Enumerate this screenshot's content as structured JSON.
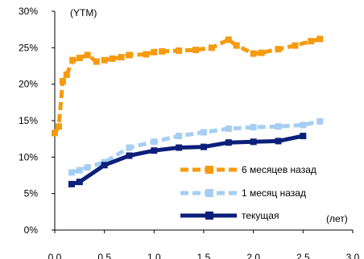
{
  "chart_data": {
    "type": "line",
    "ylabel": "(YTM)",
    "xlabel": "(лет)",
    "xlim": [
      0,
      3
    ],
    "ylim": [
      0,
      30
    ],
    "x_ticks": [
      "0.0",
      "0.5",
      "1.0",
      "1.5",
      "2.0",
      "2.5",
      "3.0"
    ],
    "y_ticks": [
      "0%",
      "5%",
      "10%",
      "15%",
      "20%",
      "25%",
      "30%"
    ],
    "grid": false,
    "legend_position": "bottom-right",
    "series": [
      {
        "name": "6 месяцев назад",
        "color": "#f59b10",
        "style": "dashed",
        "marker": "square",
        "x": [
          0.0,
          0.04,
          0.08,
          0.12,
          0.18,
          0.25,
          0.33,
          0.42,
          0.5,
          0.58,
          0.67,
          0.75,
          0.92,
          1.0,
          1.08,
          1.25,
          1.42,
          1.58,
          1.75,
          1.83,
          2.0,
          2.08,
          2.25,
          2.42,
          2.58,
          2.67
        ],
        "y": [
          13.3,
          14.2,
          20.4,
          21.3,
          23.3,
          23.6,
          24.0,
          23.1,
          23.3,
          23.5,
          23.7,
          24.0,
          24.1,
          24.4,
          24.5,
          24.6,
          24.7,
          25.0,
          26.1,
          25.3,
          24.2,
          24.3,
          24.8,
          25.3,
          25.9,
          26.2
        ]
      },
      {
        "name": "1 месяц назад",
        "color": "#a6cef2",
        "style": "dashed",
        "marker": "square",
        "x": [
          0.17,
          0.25,
          0.33,
          0.5,
          0.75,
          1.0,
          1.25,
          1.5,
          1.75,
          2.0,
          2.25,
          2.5,
          2.67
        ],
        "y": [
          7.9,
          8.2,
          8.6,
          9.3,
          11.3,
          12.1,
          12.9,
          13.4,
          13.9,
          14.1,
          14.2,
          14.4,
          14.9
        ]
      },
      {
        "name": "текущая",
        "color": "#0c1f7a",
        "style": "solid",
        "marker": "square",
        "x": [
          0.17,
          0.25,
          0.5,
          0.75,
          1.0,
          1.25,
          1.5,
          1.75,
          2.0,
          2.25,
          2.5
        ],
        "y": [
          6.3,
          6.6,
          8.9,
          10.2,
          10.9,
          11.3,
          11.4,
          12.0,
          12.1,
          12.2,
          12.9
        ]
      }
    ]
  }
}
